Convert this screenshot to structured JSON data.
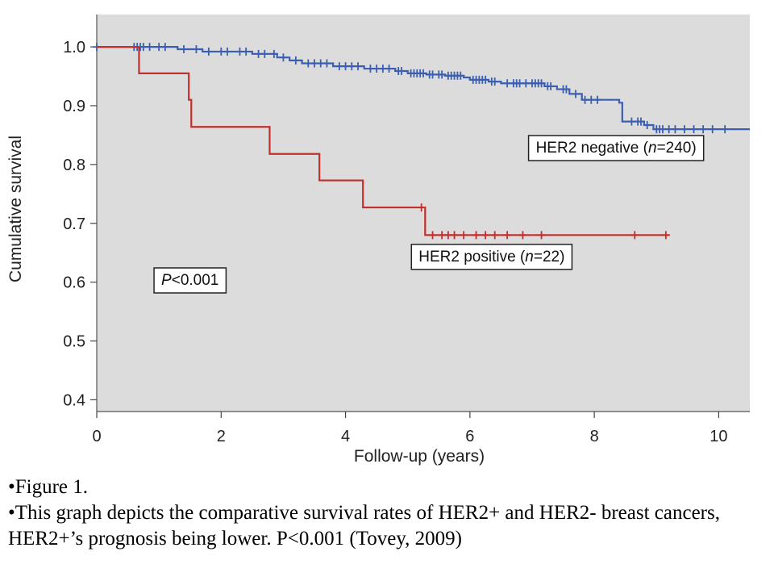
{
  "chart_data": {
    "type": "line",
    "title": "",
    "xlabel": "Follow-up (years)",
    "ylabel": "Cumulative survival",
    "xlim": [
      0,
      10.5
    ],
    "ylim": [
      0.38,
      1.055
    ],
    "x_ticks": [
      0,
      2,
      4,
      6,
      8,
      10
    ],
    "y_ticks": [
      0.4,
      0.5,
      0.6,
      0.7,
      0.8,
      0.9,
      1.0
    ],
    "x_tick_labels": [
      "0",
      "2",
      "4",
      "6",
      "8",
      "10"
    ],
    "y_tick_labels": [
      "0.4",
      "0.5",
      "0.6",
      "0.7",
      "0.8",
      "0.9",
      "1.0"
    ],
    "grid": false,
    "plot_background": "#dcdcdc",
    "series": [
      {
        "name": "HER2 negative (n=240)",
        "color": "#3b5fb0",
        "step": [
          [
            0,
            1.0
          ],
          [
            0.9,
            1.0
          ],
          [
            1.3,
            0.996
          ],
          [
            1.7,
            0.992
          ],
          [
            2.5,
            0.988
          ],
          [
            2.9,
            0.982
          ],
          [
            3.1,
            0.977
          ],
          [
            3.3,
            0.972
          ],
          [
            3.8,
            0.967
          ],
          [
            4.3,
            0.963
          ],
          [
            4.8,
            0.959
          ],
          [
            5.0,
            0.955
          ],
          [
            5.3,
            0.953
          ],
          [
            5.6,
            0.951
          ],
          [
            5.9,
            0.948
          ],
          [
            6.0,
            0.944
          ],
          [
            6.3,
            0.941
          ],
          [
            6.5,
            0.938
          ],
          [
            7.2,
            0.933
          ],
          [
            7.4,
            0.928
          ],
          [
            7.6,
            0.92
          ],
          [
            7.8,
            0.91
          ],
          [
            8.4,
            0.905
          ],
          [
            8.45,
            0.873
          ],
          [
            8.8,
            0.867
          ],
          [
            8.95,
            0.86
          ],
          [
            10.5,
            0.86
          ]
        ],
        "censor_x": [
          0,
          0.6,
          0.65,
          0.7,
          0.75,
          0.85,
          1.0,
          1.1,
          1.4,
          1.6,
          1.8,
          2.0,
          2.1,
          2.3,
          2.4,
          2.6,
          2.7,
          2.85,
          3.0,
          3.2,
          3.4,
          3.5,
          3.6,
          3.7,
          3.9,
          4.0,
          4.1,
          4.2,
          4.4,
          4.5,
          4.6,
          4.7,
          4.85,
          4.9,
          5.05,
          5.1,
          5.15,
          5.2,
          5.25,
          5.35,
          5.4,
          5.5,
          5.55,
          5.65,
          5.7,
          5.75,
          5.8,
          5.85,
          6.05,
          6.1,
          6.15,
          6.2,
          6.25,
          6.35,
          6.4,
          6.6,
          6.7,
          6.75,
          6.8,
          6.9,
          7.0,
          7.05,
          7.1,
          7.15,
          7.25,
          7.3,
          7.5,
          7.55,
          7.7,
          7.85,
          7.95,
          8.05,
          8.6,
          8.7,
          8.75,
          8.85,
          9.0,
          9.05,
          9.1,
          9.2,
          9.3,
          9.45,
          9.6,
          9.75,
          9.9,
          10.1
        ]
      },
      {
        "name": "HER2 positive (n=22)",
        "color": "#c0302c",
        "step": [
          [
            0,
            1.0
          ],
          [
            0.68,
            1.0
          ],
          [
            0.68,
            0.955
          ],
          [
            1.48,
            0.955
          ],
          [
            1.48,
            0.91
          ],
          [
            1.52,
            0.91
          ],
          [
            1.52,
            0.864
          ],
          [
            2.78,
            0.864
          ],
          [
            2.78,
            0.818
          ],
          [
            3.58,
            0.818
          ],
          [
            3.58,
            0.773
          ],
          [
            4.28,
            0.773
          ],
          [
            4.28,
            0.727
          ],
          [
            5.28,
            0.727
          ],
          [
            5.28,
            0.68
          ],
          [
            9.2,
            0.68
          ]
        ],
        "censor_x": [
          5.22,
          5.4,
          5.55,
          5.65,
          5.75,
          5.9,
          6.1,
          6.25,
          6.4,
          6.6,
          6.85,
          7.15,
          8.65,
          9.15
        ]
      }
    ],
    "annotations": [
      {
        "text_parts": [
          "HER2 negative (",
          "n",
          "=240)"
        ],
        "x": 8.35,
        "y": 0.83
      },
      {
        "text_parts": [
          "HER2 positive (",
          "n",
          "=22)"
        ],
        "x": 6.35,
        "y": 0.645
      },
      {
        "text_parts": [
          "P",
          "<0.001"
        ],
        "x": 1.5,
        "y": 0.605
      }
    ]
  },
  "caption": {
    "line1": "•Figure 1.",
    "line2": "•This graph depicts the comparative survival rates of HER2+ and HER2- breast cancers, HER2+’s prognosis being lower. P<0.001 (Tovey, 2009)"
  }
}
